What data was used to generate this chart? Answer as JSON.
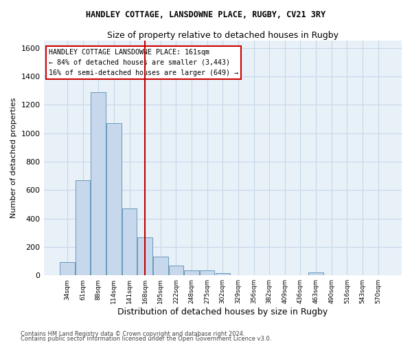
{
  "title": "HANDLEY COTTAGE, LANSDOWNE PLACE, RUGBY, CV21 3RY",
  "subtitle": "Size of property relative to detached houses in Rugby",
  "xlabel": "Distribution of detached houses by size in Rugby",
  "ylabel": "Number of detached properties",
  "footer1": "Contains HM Land Registry data © Crown copyright and database right 2024.",
  "footer2": "Contains public sector information licensed under the Open Government Licence v3.0.",
  "bar_color": "#c8d8ec",
  "bar_edge_color": "#6699bb",
  "annotation_box_color": "#ffffff",
  "annotation_box_edge": "#cc0000",
  "vline_color": "#bb0000",
  "grid_color": "#c5d8e8",
  "background_color": "#e8f0f8",
  "categories": [
    "34sqm",
    "61sqm",
    "88sqm",
    "114sqm",
    "141sqm",
    "168sqm",
    "195sqm",
    "222sqm",
    "248sqm",
    "275sqm",
    "302sqm",
    "329sqm",
    "356sqm",
    "382sqm",
    "409sqm",
    "436sqm",
    "463sqm",
    "490sqm",
    "516sqm",
    "543sqm",
    "570sqm"
  ],
  "values": [
    95,
    670,
    1290,
    1070,
    470,
    265,
    130,
    68,
    35,
    35,
    15,
    0,
    0,
    0,
    0,
    0,
    20,
    0,
    0,
    0,
    0
  ],
  "ylim": [
    0,
    1650
  ],
  "yticks": [
    0,
    200,
    400,
    600,
    800,
    1000,
    1200,
    1400,
    1600
  ],
  "vline_x": 5.0,
  "annotation_text": "HANDLEY COTTAGE LANSDOWNE PLACE: 161sqm\n← 84% of detached houses are smaller (3,443)\n16% of semi-detached houses are larger (649) →"
}
